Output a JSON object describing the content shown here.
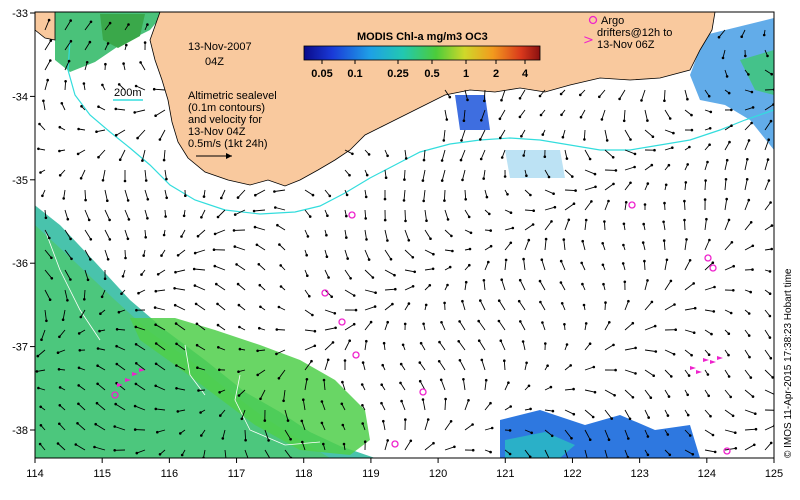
{
  "map": {
    "date": "13-Nov-2007",
    "time": "04Z",
    "depth_label": "200m",
    "sealevel_note": [
      "Altimetric sealevel",
      "(0.1m contours)",
      "and velocity for",
      "13-Nov 04Z",
      "0.5m/s (1kt 24h)"
    ],
    "colorbar_title": "MODIS Chl-a mg/m3 OC3",
    "colorbar_ticks": [
      "0.05",
      "0.1",
      "0.25",
      "0.5",
      "1",
      "2",
      "4"
    ],
    "argo_note": [
      "Argo",
      "drifters@12h to",
      "13-Nov 06Z"
    ],
    "credit": "© IMOS 11-Apr-2015 17:38:23 Hobart time",
    "x_ticks": [
      "114",
      "115",
      "116",
      "117",
      "118",
      "119",
      "120",
      "121",
      "122",
      "123",
      "124",
      "125"
    ],
    "y_ticks": [
      "-33",
      "-34",
      "-35",
      "-36",
      "-37",
      "-38"
    ],
    "colors": {
      "land": "#f9c99e",
      "depth_contour": "#33dddd",
      "argo": "#ee22cc",
      "chl_low": "#2255ee",
      "chl_mid": "#33bbaa",
      "chl_high": "#66cc33"
    }
  }
}
